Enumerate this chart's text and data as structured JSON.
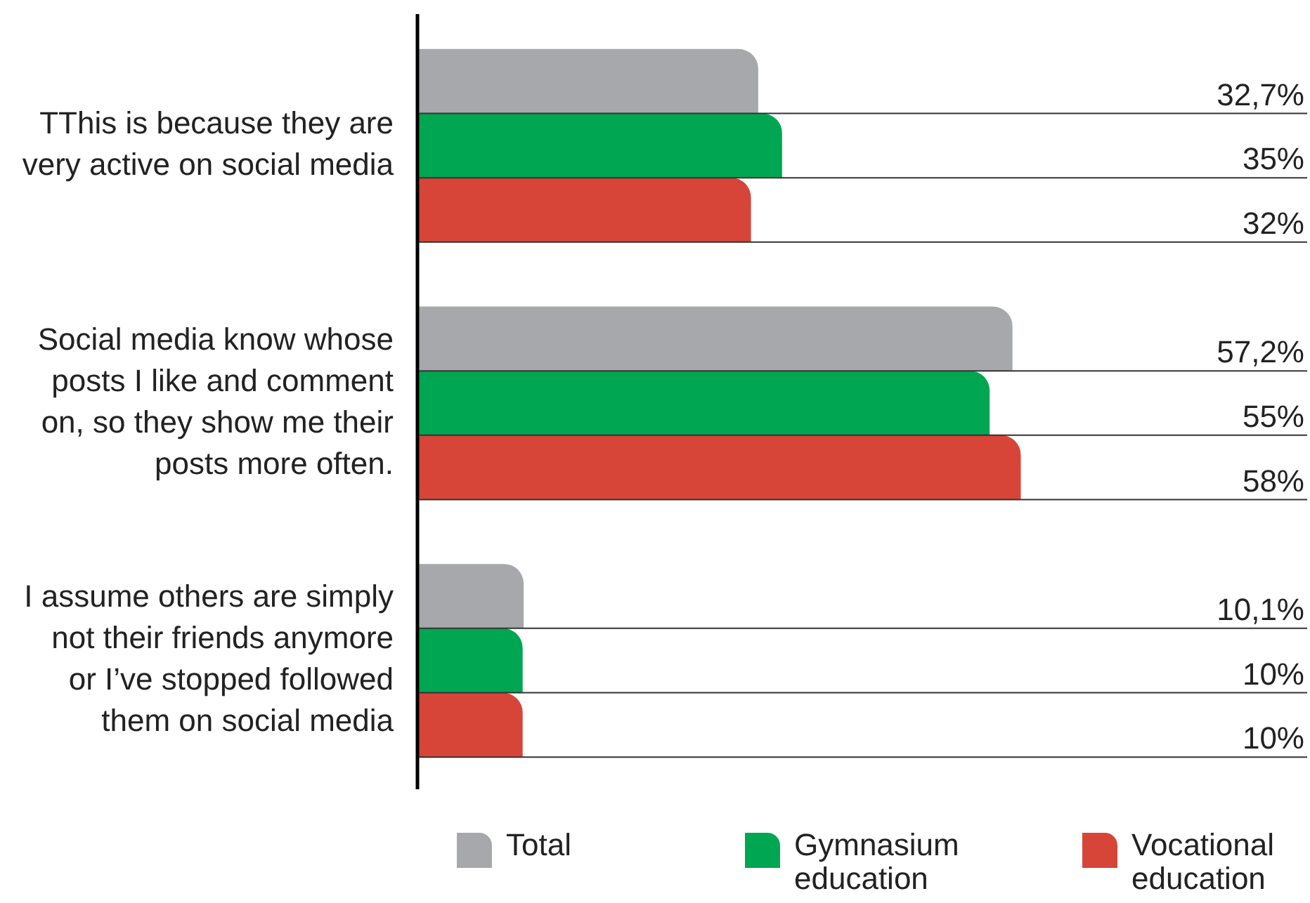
{
  "chart_data": {
    "type": "bar",
    "orientation": "horizontal",
    "categories": [
      "TThis is because they are very active on social media",
      "Social media know whose posts I like and comment on, so they show me their posts more often.",
      "I assume others are simply not their friends anymore or I’ve stopped followed them on social media"
    ],
    "series": [
      {
        "name": "Total",
        "color": "#a7a8ab",
        "values": [
          32.7,
          57.2,
          10.1
        ],
        "value_labels": [
          "32,7%",
          "57,2%",
          "10,1%"
        ]
      },
      {
        "name": "Gymnasium education",
        "color": "#00a651",
        "values": [
          35,
          55,
          10
        ],
        "value_labels": [
          "35%",
          "55%",
          "10%"
        ]
      },
      {
        "name": "Vocational education",
        "color": "#d64538",
        "values": [
          32,
          58,
          10
        ],
        "value_labels": [
          "32%",
          "58%",
          "10%"
        ]
      }
    ],
    "legend": "bottom"
  }
}
